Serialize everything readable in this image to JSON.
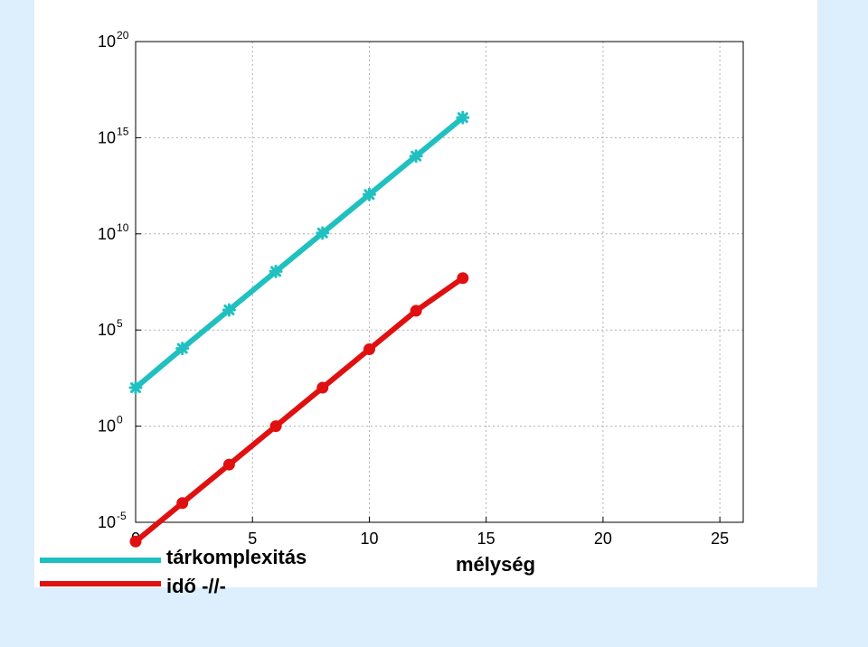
{
  "chart_data": {
    "type": "line",
    "xlabel": "mélység",
    "ylabel": "",
    "xlim": [
      0,
      26
    ],
    "ylim_log10": [
      -5,
      20
    ],
    "yscale": "log",
    "grid": true,
    "x_ticks": [
      "0",
      "5",
      "10",
      "15",
      "20",
      "25"
    ],
    "y_ticks": [
      {
        "base": "10",
        "exp": "-5"
      },
      {
        "base": "10",
        "exp": "0"
      },
      {
        "base": "10",
        "exp": "5"
      },
      {
        "base": "10",
        "exp": "10"
      },
      {
        "base": "10",
        "exp": "15"
      },
      {
        "base": "10",
        "exp": "20"
      }
    ],
    "legend_position": "bottom-left",
    "series": [
      {
        "name": "tárkomplexitás",
        "color": "#20c0c0",
        "marker": "star",
        "x": [
          0,
          2,
          4,
          6,
          8,
          10,
          12,
          14
        ],
        "y": [
          100,
          11000,
          1110000,
          111000000,
          11100000000,
          1110000000000,
          111000000000000,
          11100000000000000
        ]
      },
      {
        "name": "idő -//-",
        "color": "#e01010",
        "marker": "circle",
        "x": [
          0,
          2,
          4,
          6,
          8,
          10,
          12,
          14
        ],
        "y": [
          1e-06,
          0.0001,
          0.01,
          1,
          100,
          10000,
          1000000,
          50000000
        ]
      }
    ]
  }
}
